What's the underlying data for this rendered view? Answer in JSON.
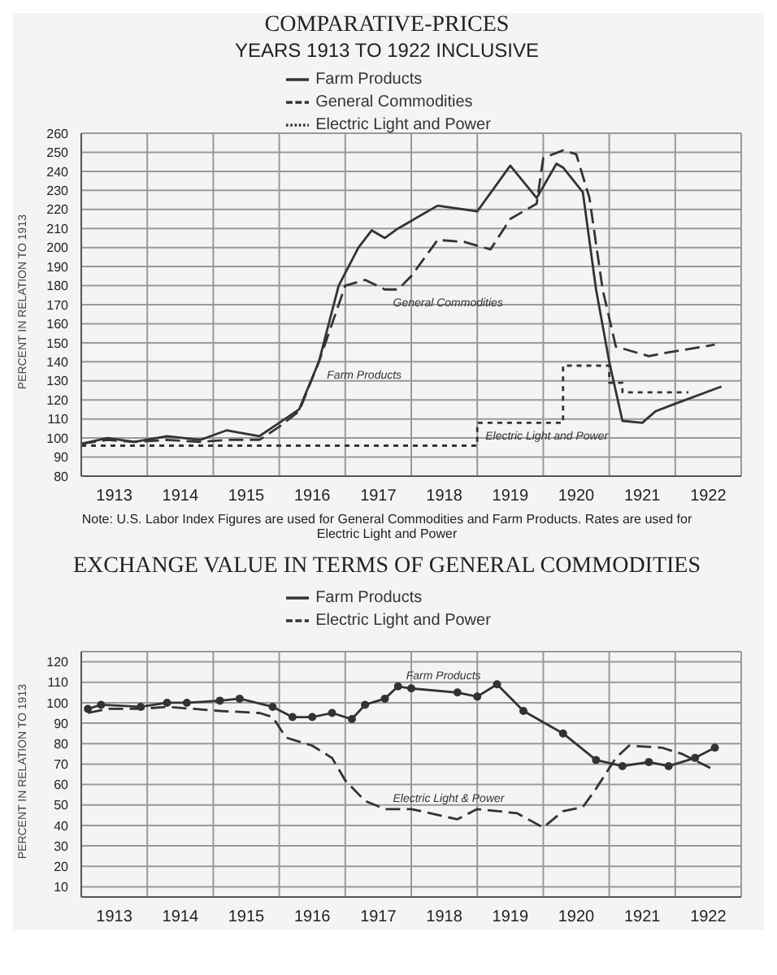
{
  "chart_data": [
    {
      "type": "line",
      "title": "COMPARATIVE-PRICES",
      "subtitle": "YEARS 1913 TO 1922 INCLUSIVE",
      "ylabel": "PERCENT IN RELATION TO 1913",
      "legend": "top",
      "grid": true,
      "xlim": [
        1913,
        1923
      ],
      "ylim": [
        80,
        260
      ],
      "xticks": [
        {
          "value": 1913,
          "label": null
        },
        {
          "value": 1913.5,
          "label": "1913"
        },
        {
          "value": 1914,
          "label": null
        },
        {
          "value": 1914.5,
          "label": "1914"
        },
        {
          "value": 1915,
          "label": null
        },
        {
          "value": 1915.5,
          "label": "1915"
        },
        {
          "value": 1916,
          "label": null
        },
        {
          "value": 1916.5,
          "label": "1916"
        },
        {
          "value": 1917,
          "label": null
        },
        {
          "value": 1917.5,
          "label": "1917"
        },
        {
          "value": 1918,
          "label": null
        },
        {
          "value": 1918.5,
          "label": "1918"
        },
        {
          "value": 1919,
          "label": null
        },
        {
          "value": 1919.5,
          "label": "1919"
        },
        {
          "value": 1920,
          "label": null
        },
        {
          "value": 1920.5,
          "label": "1920"
        },
        {
          "value": 1921,
          "label": null
        },
        {
          "value": 1921.5,
          "label": "1921"
        },
        {
          "value": 1922,
          "label": null
        },
        {
          "value": 1922.5,
          "label": "1922"
        },
        {
          "value": 1923,
          "label": null
        }
      ],
      "yticks": [
        80,
        90,
        100,
        110,
        120,
        130,
        140,
        150,
        160,
        170,
        180,
        190,
        200,
        210,
        220,
        230,
        240,
        250,
        260
      ],
      "series": [
        {
          "name": "Farm Products",
          "color": "#333333",
          "line_style": "solid",
          "x": [
            1913,
            1913.4,
            1913.8,
            1914.3,
            1914.8,
            1915.2,
            1915.7,
            1916,
            1916.3,
            1916.6,
            1916.9,
            1917.2,
            1917.4,
            1917.6,
            1917.8,
            1918.4,
            1919,
            1919.5,
            1919.9,
            1920.2,
            1920.3,
            1920.6,
            1920.8,
            1921,
            1921.2,
            1921.5,
            1921.7,
            1922,
            1922.7
          ],
          "values": [
            97,
            100,
            98,
            101,
            99,
            104,
            101,
            108,
            115,
            140,
            180,
            200,
            209,
            205,
            210,
            222,
            219,
            243,
            226,
            244,
            242,
            229,
            178,
            140,
            109,
            108,
            114,
            118,
            127
          ]
        },
        {
          "name": "General Commodities",
          "color": "#333333",
          "line_style": "dashed",
          "x": [
            1913,
            1913.4,
            1913.8,
            1914.3,
            1914.8,
            1915.2,
            1915.7,
            1916,
            1916.3,
            1916.6,
            1917,
            1917.3,
            1917.6,
            1917.8,
            1918,
            1918.4,
            1918.8,
            1919.2,
            1919.5,
            1919.9,
            1920,
            1920.3,
            1920.5,
            1920.7,
            1920.9,
            1921.1,
            1921.6,
            1921.9,
            1922.6
          ],
          "values": [
            97,
            99,
            98,
            99,
            98,
            99,
            99,
            106,
            114,
            140,
            180,
            183,
            178,
            178,
            185,
            204,
            203,
            199,
            215,
            223,
            247,
            251,
            249,
            226,
            178,
            148,
            143,
            145,
            149
          ]
        },
        {
          "name": "Electric Light and Power",
          "type": "step",
          "color": "#333333",
          "line_style": "dotted",
          "x": [
            1913,
            1919,
            1920.3,
            1921,
            1921.2,
            1922.2
          ],
          "values": [
            96,
            108,
            138,
            129,
            124,
            124
          ]
        }
      ],
      "annotations": [
        {
          "text": "Farm Products",
          "x": 1916.6,
          "y": 140
        },
        {
          "text": "General Commodities",
          "x": 1917.6,
          "y": 178
        },
        {
          "text": "Electric Light and Power",
          "x": 1919,
          "y": 108
        },
        "Note: U.S. Labor Index Figures are used for General Commodities and Farm Products. Rates are used for Electric Light and Power"
      ]
    },
    {
      "type": "line",
      "title": "EXCHANGE VALUE IN TERMS OF GENERAL COMMODITIES",
      "ylabel": "PERCENT IN RELATION TO 1913",
      "legend": "top",
      "grid": true,
      "xlim": [
        1913,
        1923
      ],
      "ylim": [
        5,
        125
      ],
      "xticks": [
        {
          "value": 1913,
          "label": null
        },
        {
          "value": 1913.5,
          "label": "1913"
        },
        {
          "value": 1914,
          "label": null
        },
        {
          "value": 1914.5,
          "label": "1914"
        },
        {
          "value": 1915,
          "label": null
        },
        {
          "value": 1915.5,
          "label": "1915"
        },
        {
          "value": 1916,
          "label": null
        },
        {
          "value": 1916.5,
          "label": "1916"
        },
        {
          "value": 1917,
          "label": null
        },
        {
          "value": 1917.5,
          "label": "1917"
        },
        {
          "value": 1918,
          "label": null
        },
        {
          "value": 1918.5,
          "label": "1918"
        },
        {
          "value": 1919,
          "label": null
        },
        {
          "value": 1919.5,
          "label": "1919"
        },
        {
          "value": 1920,
          "label": null
        },
        {
          "value": 1920.5,
          "label": "1920"
        },
        {
          "value": 1921,
          "label": null
        },
        {
          "value": 1921.5,
          "label": "1921"
        },
        {
          "value": 1922,
          "label": null
        },
        {
          "value": 1922.5,
          "label": "1922"
        },
        {
          "value": 1923,
          "label": null
        }
      ],
      "yticks": [
        10,
        20,
        30,
        40,
        50,
        60,
        70,
        80,
        90,
        100,
        110,
        120
      ],
      "series": [
        {
          "name": "Farm Products",
          "color": "#333333",
          "line_style": "solid",
          "marker": "circle",
          "x": [
            1913.1,
            1913.3,
            1913.9,
            1914.3,
            1914.6,
            1915.1,
            1915.4,
            1915.9,
            1916.2,
            1916.5,
            1916.8,
            1917.1,
            1917.3,
            1917.6,
            1917.8,
            1918,
            1918.7,
            1919,
            1919.3,
            1919.7,
            1920.3,
            1920.8,
            1921.2,
            1921.6,
            1921.9,
            1922.3,
            1922.6
          ],
          "values": [
            97,
            99,
            98,
            100,
            100,
            101,
            102,
            98,
            93,
            93,
            95,
            92,
            99,
            102,
            108,
            107,
            105,
            103,
            109,
            96,
            85,
            72,
            69,
            71,
            69,
            73,
            78
          ]
        },
        {
          "name": "Electric Light and Power",
          "color": "#333333",
          "line_style": "dashed",
          "x": [
            1913.1,
            1913.4,
            1913.9,
            1914.3,
            1914.7,
            1915.1,
            1915.7,
            1915.9,
            1916.1,
            1916.5,
            1916.8,
            1917,
            1917.3,
            1917.6,
            1918,
            1918.7,
            1919,
            1919.6,
            1920,
            1920.3,
            1920.6,
            1920.8,
            1921.1,
            1921.3,
            1921.8,
            1922.1,
            1922.6
          ],
          "values": [
            95,
            97,
            97,
            98,
            97,
            96,
            95,
            93,
            83,
            79,
            73,
            62,
            52,
            48,
            48,
            43,
            48,
            46,
            39,
            47,
            49,
            58,
            73,
            79,
            78,
            75,
            67
          ]
        }
      ],
      "annotations": [
        {
          "text": "Farm Products",
          "x": 1917.8,
          "y": 108
        },
        {
          "text": "Electric Light & Power",
          "x": 1917.6,
          "y": 48
        }
      ]
    }
  ]
}
